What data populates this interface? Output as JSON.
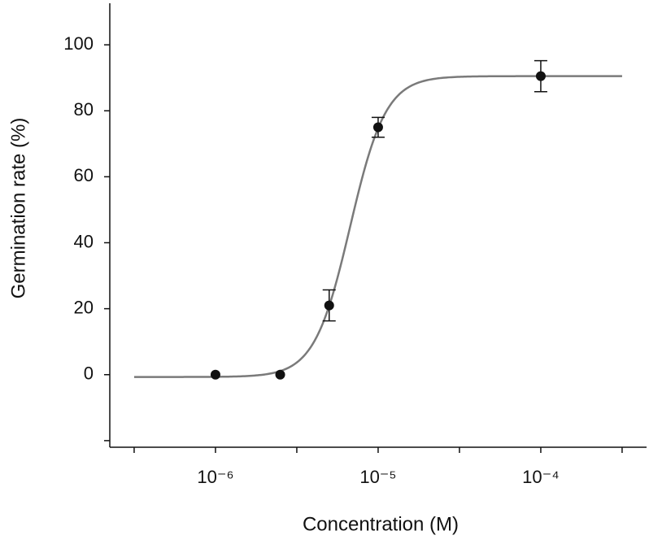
{
  "chart_data": {
    "type": "scatter",
    "x_label": "Concentration (M)",
    "y_label": "Germination rate (%)",
    "x_scale": "log",
    "xlim": [
      2.24e-07,
      0.000447
    ],
    "xticks": [
      {
        "value": 1e-06,
        "label": "10⁻⁶"
      },
      {
        "value": 1e-05,
        "label": "10⁻⁵"
      },
      {
        "value": 0.0001,
        "label": "10⁻⁴"
      }
    ],
    "xminorticks": [
      3.162e-07,
      3.162e-06,
      3.162e-05,
      0.0003162
    ],
    "ylim": [
      -22,
      112.6
    ],
    "yticks": [
      0,
      20,
      40,
      60,
      80,
      100
    ],
    "yminorticks": [
      -20
    ],
    "grid": false,
    "series": [
      {
        "color": "#111111",
        "x": [
          1e-06,
          2.5e-06,
          5e-06,
          1e-05,
          0.0001
        ],
        "values": [
          0,
          0,
          21,
          75,
          90.5
        ],
        "errors": [
          0,
          0,
          4.7,
          3,
          4.7
        ]
      }
    ],
    "curve": {
      "color": "#7a7a7a",
      "bottom": -0.7,
      "top": 90.5,
      "ec50": 6.73e-06,
      "hill": 3.95,
      "xrange": [
        3.162e-07,
        0.0003162
      ]
    }
  }
}
